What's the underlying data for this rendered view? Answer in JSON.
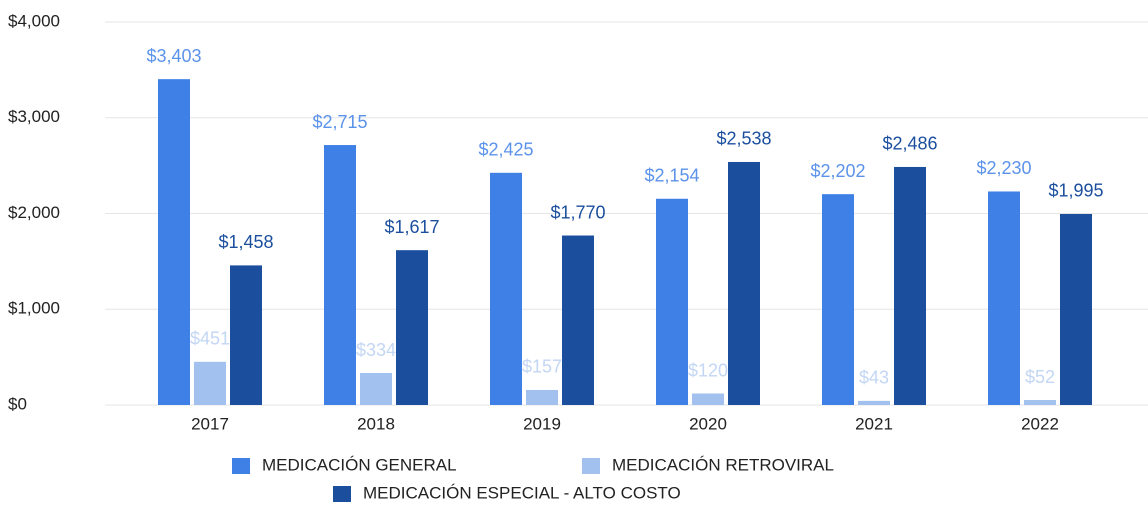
{
  "chart_data": {
    "type": "bar",
    "categories": [
      "2017",
      "2018",
      "2019",
      "2020",
      "2021",
      "2022"
    ],
    "series": [
      {
        "name": "MEDICACIÓN GENERAL",
        "color": "#3f80e6",
        "label_color": "#5b93ea",
        "values": [
          3403,
          2715,
          2425,
          2154,
          2202,
          2230
        ],
        "value_labels": [
          "$3,403",
          "$2,715",
          "$2,425",
          "$2,154",
          "$2,202",
          "$2,230"
        ]
      },
      {
        "name": "MEDICACIÓN RETROVIRAL",
        "color": "#a3c1ee",
        "label_color": "#c3d6f3",
        "values": [
          451,
          334,
          157,
          120,
          43,
          52
        ],
        "value_labels": [
          "$451",
          "$334",
          "$157",
          "$120",
          "$43",
          "$52"
        ]
      },
      {
        "name": "MEDICACIÓN ESPECIAL - ALTO COSTO",
        "color": "#1b4f9e",
        "label_color": "#1b4f9e",
        "values": [
          1458,
          1617,
          1770,
          2538,
          2486,
          1995
        ],
        "value_labels": [
          "$1,458",
          "$1,617",
          "$1,770",
          "$2,538",
          "$2,486",
          "$1,995"
        ]
      }
    ],
    "ylim": [
      0,
      4000
    ],
    "yticks": [
      {
        "value": 0,
        "label": "$0"
      },
      {
        "value": 1000,
        "label": "$1,000"
      },
      {
        "value": 2000,
        "label": "$2,000"
      },
      {
        "value": 3000,
        "label": "$3,000"
      },
      {
        "value": 4000,
        "label": "$4,000"
      }
    ],
    "grid": true
  }
}
